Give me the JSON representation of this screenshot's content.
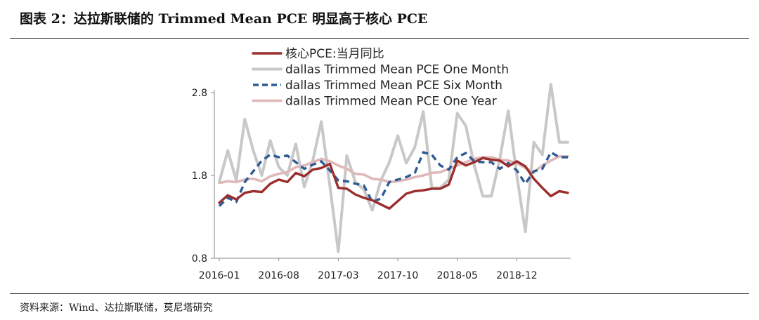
{
  "figure": {
    "title": "图表 2：达拉斯联储的 Trimmed Mean PCE 明显高于核心 PCE",
    "source": "资料来源：Wind、达拉斯联储，莫尼塔研究"
  },
  "chart_data": {
    "type": "line",
    "xlabel": "",
    "ylabel": "",
    "ylim": [
      0.8,
      2.8
    ],
    "yticks": [
      0.8,
      1.8,
      2.8
    ],
    "x": [
      "2016-01",
      "2016-02",
      "2016-03",
      "2016-04",
      "2016-05",
      "2016-06",
      "2016-07",
      "2016-08",
      "2016-09",
      "2016-10",
      "2016-11",
      "2016-12",
      "2017-01",
      "2017-02",
      "2017-03",
      "2017-04",
      "2017-05",
      "2017-06",
      "2017-07",
      "2017-08",
      "2017-09",
      "2017-10",
      "2017-11",
      "2017-12",
      "2018-01",
      "2018-02",
      "2018-03",
      "2018-04",
      "2018-05",
      "2018-06",
      "2018-07",
      "2018-08",
      "2018-09",
      "2018-10",
      "2018-11",
      "2018-12",
      "2019-01",
      "2019-02",
      "2019-03",
      "2019-04",
      "2019-05",
      "2019-06"
    ],
    "xtick_labels": [
      "2016-01",
      "2016-08",
      "2017-03",
      "2017-10",
      "2018-05",
      "2018-12"
    ],
    "legend_position": "top",
    "grid": false,
    "series": [
      {
        "name": "核心PCE:当月同比",
        "color": "#9b2d2d",
        "dash": "solid",
        "values": [
          1.47,
          1.56,
          1.51,
          1.59,
          1.61,
          1.6,
          1.7,
          1.75,
          1.72,
          1.83,
          1.79,
          1.87,
          1.89,
          1.94,
          1.65,
          1.64,
          1.57,
          1.53,
          1.5,
          1.45,
          1.4,
          1.49,
          1.58,
          1.61,
          1.62,
          1.64,
          1.64,
          1.69,
          1.98,
          1.92,
          1.96,
          2.01,
          1.99,
          1.98,
          1.91,
          1.97,
          1.91,
          1.76,
          1.65,
          1.55,
          1.61,
          1.59
        ]
      },
      {
        "name": "dallas Trimmed Mean PCE One Month",
        "color": "#c8c8c8",
        "dash": "solid",
        "values": [
          1.72,
          2.1,
          1.74,
          2.48,
          2.1,
          1.8,
          2.22,
          1.9,
          1.8,
          2.18,
          1.66,
          1.98,
          2.45,
          1.68,
          0.88,
          2.04,
          1.72,
          1.63,
          1.38,
          1.74,
          1.96,
          2.28,
          1.95,
          2.14,
          2.57,
          1.65,
          1.65,
          1.75,
          2.55,
          2.4,
          1.92,
          1.55,
          1.55,
          2.0,
          2.58,
          1.8,
          1.12,
          2.2,
          2.05,
          2.9,
          2.2,
          2.2
        ]
      },
      {
        "name": "dallas Trimmed Mean PCE Six Month",
        "color": "#2e5b94",
        "dash": "dashed",
        "values": [
          1.43,
          1.53,
          1.48,
          1.72,
          1.85,
          1.98,
          2.05,
          2.02,
          2.04,
          1.96,
          1.88,
          1.93,
          1.97,
          1.86,
          1.74,
          1.73,
          1.7,
          1.68,
          1.48,
          1.52,
          1.72,
          1.75,
          1.78,
          1.83,
          2.08,
          2.05,
          1.92,
          1.87,
          2.02,
          2.07,
          1.97,
          1.96,
          1.96,
          1.88,
          1.95,
          1.86,
          1.7,
          1.85,
          1.88,
          2.08,
          2.02,
          2.02
        ]
      },
      {
        "name": "dallas Trimmed Mean PCE One Year",
        "color": "#dfb8b8",
        "dash": "solid",
        "values": [
          1.71,
          1.73,
          1.72,
          1.75,
          1.76,
          1.73,
          1.79,
          1.82,
          1.84,
          1.9,
          1.92,
          1.96,
          2.0,
          1.97,
          1.92,
          1.88,
          1.82,
          1.81,
          1.76,
          1.75,
          1.72,
          1.73,
          1.75,
          1.78,
          1.8,
          1.83,
          1.84,
          1.88,
          1.92,
          1.96,
          2.0,
          2.02,
          2.02,
          1.99,
          1.98,
          1.95,
          1.89,
          1.84,
          1.92,
          1.98,
          2.03,
          2.03
        ]
      }
    ]
  }
}
